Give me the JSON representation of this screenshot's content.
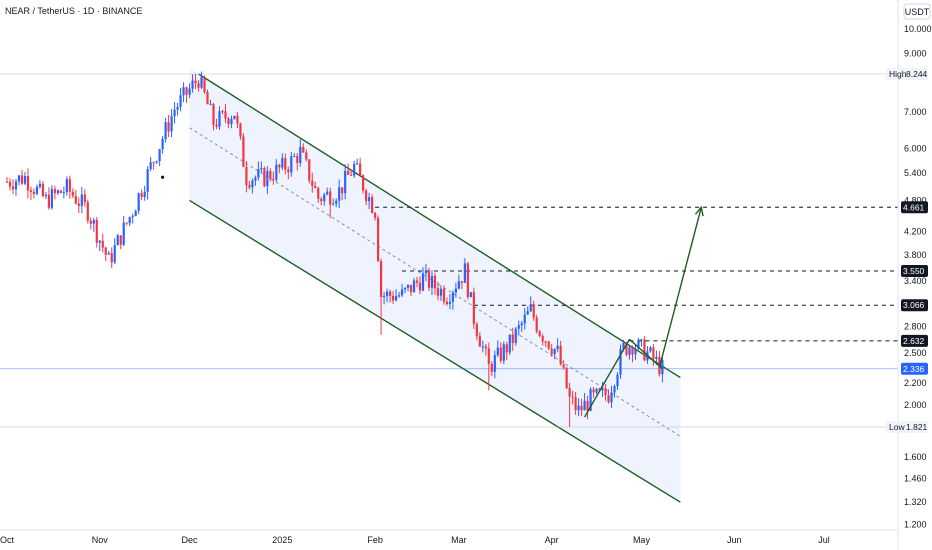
{
  "title": "NEAR / TetherUS · 1D · BINANCE",
  "currency_label": "USDT",
  "chart_data": {
    "type": "candlestick",
    "scale": "log",
    "ylim": [
      1.2,
      10.6
    ],
    "y_ticks": [
      "10.000",
      "9.000",
      "7.000",
      "6.000",
      "5.400",
      "4.800",
      "4.200",
      "3.800",
      "3.400",
      "2.800",
      "2.500",
      "2.200",
      "2.000",
      "1.600",
      "1.460",
      "1.320",
      "1.200"
    ],
    "x_ticks": [
      {
        "label": "Oct",
        "date": "2024-10-01"
      },
      {
        "label": "Nov",
        "date": "2024-11-01"
      },
      {
        "label": "Dec",
        "date": "2024-12-01"
      },
      {
        "label": "2025",
        "date": "2025-01-01"
      },
      {
        "label": "Feb",
        "date": "2025-02-01"
      },
      {
        "label": "Mar",
        "date": "2025-03-01"
      },
      {
        "label": "Apr",
        "date": "2025-04-01"
      },
      {
        "label": "May",
        "date": "2025-05-01"
      },
      {
        "label": "Jun",
        "date": "2025-06-01"
      },
      {
        "label": "Jul",
        "date": "2025-07-01"
      }
    ],
    "x_range": [
      "2024-10-01",
      "2025-07-31"
    ],
    "price_anchors": [
      [
        "2024-10-01",
        5.2
      ],
      [
        "2024-10-07",
        5.3
      ],
      [
        "2024-10-14",
        4.8
      ],
      [
        "2024-10-21",
        5.05
      ],
      [
        "2024-10-28",
        4.6
      ],
      [
        "2024-11-04",
        3.7
      ],
      [
        "2024-11-12",
        4.6
      ],
      [
        "2024-11-20",
        5.9
      ],
      [
        "2024-11-26",
        7.1
      ],
      [
        "2024-12-04",
        8.1
      ],
      [
        "2024-12-09",
        6.7
      ],
      [
        "2024-12-16",
        7.0
      ],
      [
        "2024-12-20",
        5.3
      ],
      [
        "2024-12-26",
        5.3
      ],
      [
        "2025-01-03",
        5.6
      ],
      [
        "2025-01-07",
        5.9
      ],
      [
        "2025-01-13",
        4.85
      ],
      [
        "2025-01-20",
        5.0
      ],
      [
        "2025-01-25",
        5.55
      ],
      [
        "2025-02-01",
        4.6
      ],
      [
        "2025-02-03",
        3.2
      ],
      [
        "2025-02-10",
        3.2
      ],
      [
        "2025-02-17",
        3.45
      ],
      [
        "2025-02-25",
        3.2
      ],
      [
        "2025-03-03",
        3.55
      ],
      [
        "2025-03-06",
        2.9
      ],
      [
        "2025-03-11",
        2.35
      ],
      [
        "2025-03-18",
        2.6
      ],
      [
        "2025-03-25",
        3.0
      ],
      [
        "2025-03-28",
        2.75
      ],
      [
        "2025-04-03",
        2.5
      ],
      [
        "2025-04-07",
        2.05
      ],
      [
        "2025-04-10",
        1.95
      ],
      [
        "2025-04-14",
        2.05
      ],
      [
        "2025-04-20",
        2.1
      ],
      [
        "2025-04-25",
        2.55
      ],
      [
        "2025-04-28",
        2.6
      ],
      [
        "2025-05-03",
        2.5
      ],
      [
        "2025-05-08",
        2.336
      ]
    ],
    "spikes": [
      {
        "date": "2025-02-03",
        "low": 2.7
      },
      {
        "date": "2025-03-11",
        "low": 2.13
      },
      {
        "date": "2025-04-07",
        "low": 1.821
      },
      {
        "date": "2025-01-17",
        "low": 4.45
      }
    ],
    "channel": {
      "upper": [
        [
          "2024-12-04",
          8.244
        ],
        [
          "2025-05-14",
          2.25
        ]
      ],
      "middle": [
        [
          "2024-12-01",
          6.55
        ],
        [
          "2025-05-14",
          1.75
        ]
      ],
      "lower": [
        [
          "2024-12-01",
          4.8
        ],
        [
          "2025-05-14",
          1.32
        ]
      ]
    },
    "arrow": [
      [
        "2025-05-07",
        2.35
      ],
      [
        "2025-05-21",
        4.661
      ]
    ],
    "ticker_lines": [
      {
        "date_start": "2025-04-12",
        "date_end": "2025-04-27",
        "p_start": 1.9,
        "p_end": 2.65
      },
      {
        "date_start": "2025-04-27",
        "date_end": "2025-05-08",
        "p_start": 2.65,
        "p_end": 2.336
      }
    ],
    "levels": [
      {
        "value": 4.661,
        "label": "4.661",
        "start": "2025-02-01",
        "style": "dashed"
      },
      {
        "value": 3.55,
        "label": "3.550",
        "start": "2025-02-10",
        "style": "dashed"
      },
      {
        "value": 3.066,
        "label": "3.066",
        "start": "2025-03-06",
        "style": "dashed"
      },
      {
        "value": 2.632,
        "label": "2.632",
        "start": "2025-04-27",
        "style": "dashed"
      }
    ],
    "high": {
      "label": "High",
      "value": "8.244",
      "numeric": 8.244
    },
    "low": {
      "label": "Low",
      "value": "1.821",
      "numeric": 1.821
    },
    "last": {
      "value": "2.336",
      "numeric": 2.336
    },
    "colors": {
      "up": "#2962ff",
      "down": "#f23645",
      "channel": "#1b5e20",
      "channel_fill": "#e8effc",
      "arrow": "#1b5e20"
    }
  }
}
